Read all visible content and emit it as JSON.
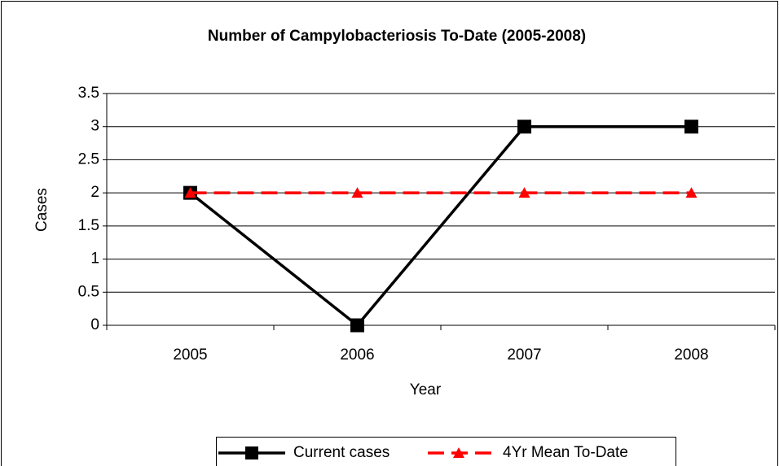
{
  "chart_data": {
    "type": "line",
    "title": "Number of Campylobacteriosis To-Date (2005-2008)",
    "xlabel": "Year",
    "ylabel": "Cases",
    "categories": [
      "2005",
      "2006",
      "2007",
      "2008"
    ],
    "series": [
      {
        "name": "Current cases",
        "color": "#000000",
        "marker": "square",
        "dash": false,
        "values": [
          2,
          0,
          3,
          3
        ]
      },
      {
        "name": "4Yr Mean To-Date",
        "color": "#ff0000",
        "marker": "triangle",
        "dash": true,
        "values": [
          2,
          2,
          2,
          2
        ]
      }
    ],
    "ylim": [
      0,
      3.5
    ],
    "yticks": [
      0,
      0.5,
      1,
      1.5,
      2,
      2.5,
      3,
      3.5
    ],
    "grid": true,
    "legend": "bottom"
  }
}
